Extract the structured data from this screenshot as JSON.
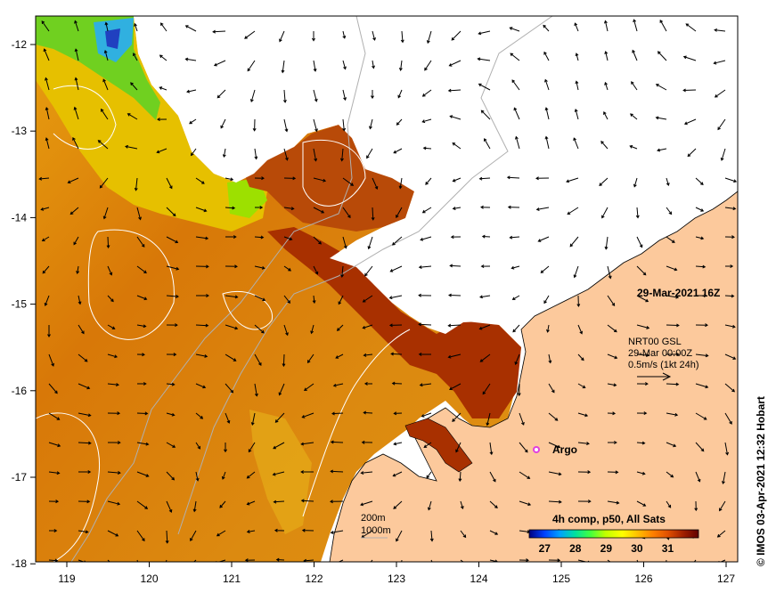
{
  "map": {
    "timestamp_label": "29-Mar-2021 16Z",
    "product_label": "4h comp, p50, All Sats",
    "current_info": {
      "line1": "NRT00 GSL",
      "line2": "29-Mar 00:00Z",
      "line3": "0.5m/s (1kt 24h)"
    },
    "argo_label": "Argo",
    "contour_labels": {
      "shallow": "200m",
      "deep": "1000m"
    },
    "credit": "© IMOS 03-Apr-2021 12:32 Hobart",
    "longitude_ticks": [
      "119",
      "120",
      "121",
      "122",
      "123",
      "124",
      "125",
      "126",
      "127"
    ],
    "latitude_ticks": [
      "-12",
      "-13",
      "-14",
      "-15",
      "-16",
      "-17",
      "-18"
    ],
    "colorbar": {
      "ticks": [
        "27",
        "28",
        "29",
        "30",
        "31"
      ],
      "min": 26.5,
      "max": 32,
      "colors": [
        "#000080",
        "#0040ff",
        "#00a0ff",
        "#00e0a0",
        "#40ff40",
        "#c0ff00",
        "#ffff00",
        "#ffc000",
        "#ff8000",
        "#e05000",
        "#a02000",
        "#600000"
      ]
    },
    "colors": {
      "land": "#fcc99c",
      "nodata": "#ffffff",
      "sst_warm": "#dc8410",
      "sst_hot": "#a83000",
      "sst_cool": "#e8c400",
      "argo_marker": "#e040e0"
    }
  }
}
